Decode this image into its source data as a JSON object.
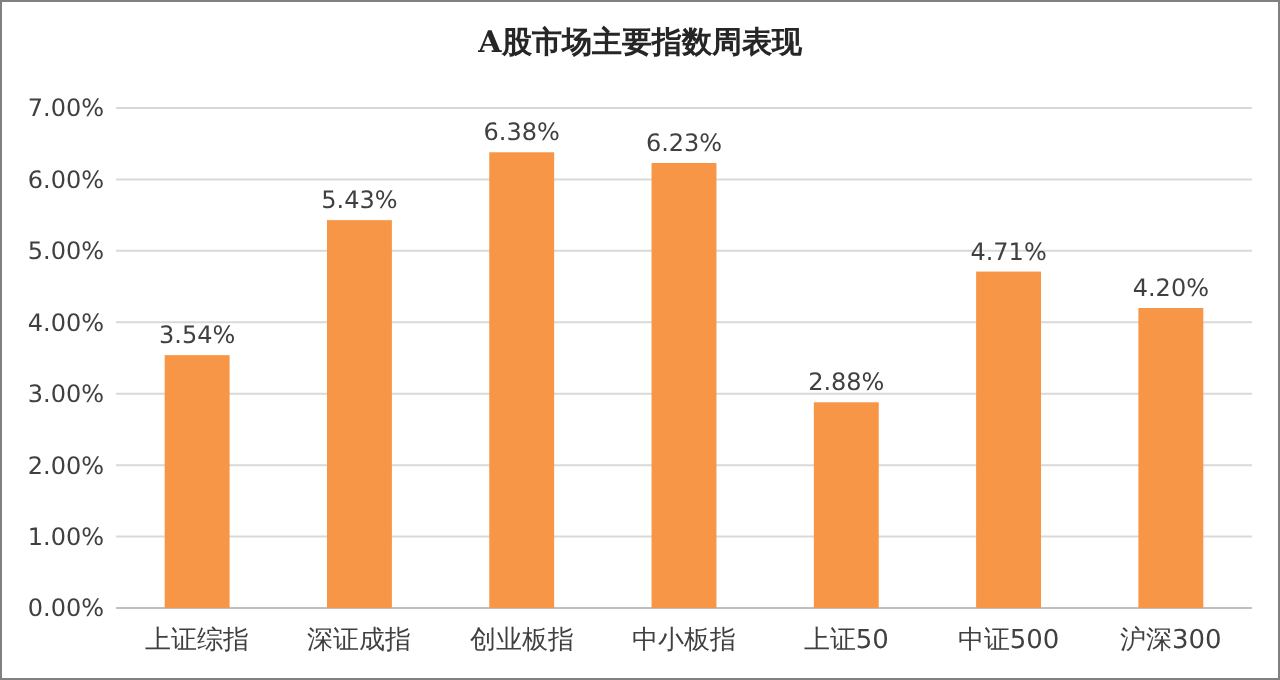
{
  "chart_data": {
    "type": "bar",
    "title": "A股市场主要指数周表现",
    "categories": [
      "上证综指",
      "深证成指",
      "创业板指",
      "中小板指",
      "上证50",
      "中证500",
      "沪深300"
    ],
    "values": [
      3.54,
      5.43,
      6.38,
      6.23,
      2.88,
      4.71,
      4.2
    ],
    "value_labels": [
      "3.54%",
      "5.43%",
      "6.38%",
      "6.23%",
      "2.88%",
      "4.71%",
      "4.20%"
    ],
    "color": "#f79646",
    "ylim": [
      0,
      7
    ],
    "yticks": [
      {
        "value": 0,
        "label": "0.00%"
      },
      {
        "value": 1,
        "label": "1.00%"
      },
      {
        "value": 2,
        "label": "2.00%"
      },
      {
        "value": 3,
        "label": "3.00%"
      },
      {
        "value": 4,
        "label": "4.00%"
      },
      {
        "value": 5,
        "label": "5.00%"
      },
      {
        "value": 6,
        "label": "6.00%"
      },
      {
        "value": 7,
        "label": "7.00%"
      }
    ],
    "grid": true
  }
}
